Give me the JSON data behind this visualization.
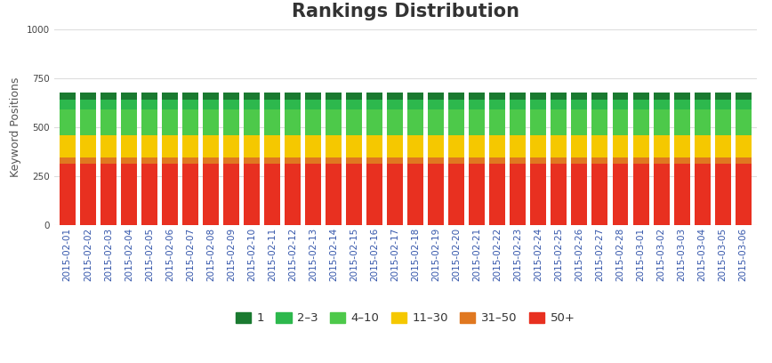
{
  "title": "Rankings Distribution",
  "ylabel": "Keyword Positions",
  "ylim": [
    0,
    1000
  ],
  "yticks": [
    0,
    250,
    500,
    750,
    1000
  ],
  "dates": [
    "2015-02-01",
    "2015-02-02",
    "2015-02-03",
    "2015-02-04",
    "2015-02-05",
    "2015-02-06",
    "2015-02-07",
    "2015-02-08",
    "2015-02-09",
    "2015-02-10",
    "2015-02-11",
    "2015-02-12",
    "2015-02-13",
    "2015-02-14",
    "2015-02-15",
    "2015-02-16",
    "2015-02-17",
    "2015-02-18",
    "2015-02-19",
    "2015-02-20",
    "2015-02-21",
    "2015-02-22",
    "2015-02-23",
    "2015-02-24",
    "2015-02-25",
    "2015-02-26",
    "2015-02-27",
    "2015-02-28",
    "2015-03-01",
    "2015-03-02",
    "2015-03-03",
    "2015-03-04",
    "2015-03-05",
    "2015-03-06"
  ],
  "series": {
    "50+": [
      315,
      315,
      315,
      315,
      315,
      315,
      315,
      315,
      315,
      315,
      315,
      315,
      315,
      315,
      315,
      315,
      315,
      315,
      315,
      315,
      315,
      315,
      315,
      315,
      315,
      315,
      315,
      315,
      315,
      315,
      315,
      315,
      315,
      315
    ],
    "31-50": [
      30,
      30,
      30,
      30,
      30,
      30,
      30,
      30,
      30,
      30,
      30,
      30,
      30,
      30,
      30,
      30,
      30,
      30,
      30,
      30,
      30,
      30,
      30,
      30,
      30,
      30,
      30,
      30,
      30,
      30,
      30,
      30,
      30,
      30
    ],
    "11-30": [
      115,
      115,
      115,
      115,
      115,
      115,
      115,
      115,
      115,
      115,
      115,
      115,
      115,
      115,
      115,
      115,
      115,
      115,
      115,
      115,
      115,
      115,
      115,
      115,
      115,
      115,
      115,
      115,
      115,
      115,
      115,
      115,
      115,
      115
    ],
    "4-10": [
      130,
      130,
      130,
      130,
      130,
      130,
      130,
      130,
      130,
      130,
      130,
      130,
      130,
      130,
      130,
      130,
      130,
      130,
      130,
      130,
      130,
      130,
      130,
      130,
      130,
      130,
      130,
      130,
      130,
      130,
      130,
      130,
      130,
      130
    ],
    "2-3": [
      50,
      50,
      50,
      50,
      50,
      50,
      50,
      50,
      50,
      50,
      50,
      50,
      50,
      50,
      50,
      50,
      50,
      50,
      50,
      50,
      50,
      50,
      50,
      50,
      50,
      50,
      50,
      50,
      50,
      50,
      50,
      50,
      50,
      50
    ],
    "1": [
      35,
      35,
      35,
      35,
      35,
      35,
      35,
      35,
      35,
      35,
      35,
      35,
      35,
      35,
      35,
      35,
      35,
      35,
      35,
      35,
      35,
      35,
      35,
      35,
      35,
      35,
      35,
      35,
      35,
      35,
      35,
      35,
      35,
      35
    ]
  },
  "colors": {
    "1": "#1a7a30",
    "2-3": "#2db84d",
    "4-10": "#4dc94a",
    "11-30": "#f5c800",
    "31-50": "#e07820",
    "50+": "#e83020"
  },
  "stack_order": [
    "50+",
    "31-50",
    "11-30",
    "4-10",
    "2-3",
    "1"
  ],
  "legend_keys": [
    "1",
    "2-3",
    "4-10",
    "11-30",
    "31-50",
    "50+"
  ],
  "legend_labels": [
    "1",
    "2–3",
    "4–10",
    "11–30",
    "31–50",
    "50+"
  ],
  "background_color": "#ffffff",
  "grid_color": "#dddddd",
  "title_fontsize": 15,
  "axis_label_fontsize": 9,
  "tick_fontsize": 7.5
}
